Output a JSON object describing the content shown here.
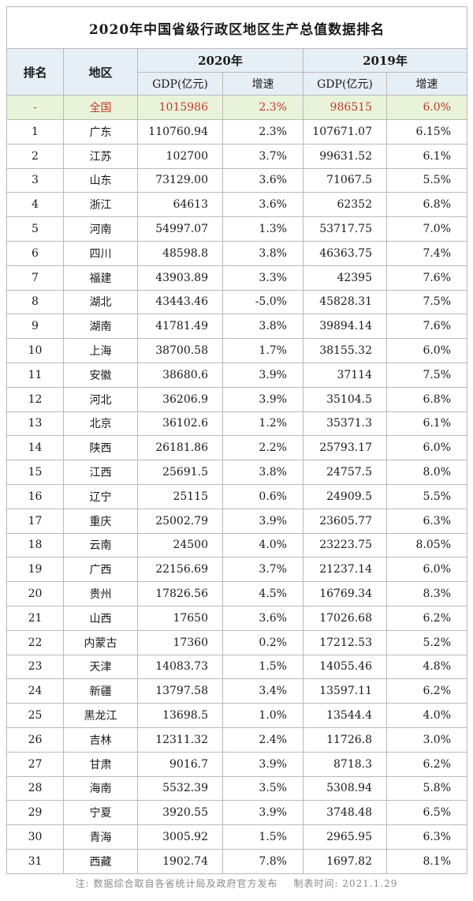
{
  "title": "2020年中国省级行政区地区生产总值数据排名",
  "headers": {
    "rank": "排名",
    "region": "地区",
    "year_2020": "2020年",
    "year_2019": "2019年",
    "gdp": "GDP(亿元)",
    "growth": "增速"
  },
  "national": {
    "rank": "-",
    "region": "全国",
    "gdp_2020": "1015986",
    "growth_2020": "2.3%",
    "gdp_2019": "986515",
    "growth_2019": "6.0%"
  },
  "rows": [
    {
      "rank": "1",
      "region": "广东",
      "gdp_2020": "110760.94",
      "growth_2020": "2.3%",
      "gdp_2019": "107671.07",
      "growth_2019": "6.15%"
    },
    {
      "rank": "2",
      "region": "江苏",
      "gdp_2020": "102700",
      "growth_2020": "3.7%",
      "gdp_2019": "99631.52",
      "growth_2019": "6.1%"
    },
    {
      "rank": "3",
      "region": "山东",
      "gdp_2020": "73129.00",
      "growth_2020": "3.6%",
      "gdp_2019": "71067.5",
      "growth_2019": "5.5%"
    },
    {
      "rank": "4",
      "region": "浙江",
      "gdp_2020": "64613",
      "growth_2020": "3.6%",
      "gdp_2019": "62352",
      "growth_2019": "6.8%"
    },
    {
      "rank": "5",
      "region": "河南",
      "gdp_2020": "54997.07",
      "growth_2020": "1.3%",
      "gdp_2019": "53717.75",
      "growth_2019": "7.0%"
    },
    {
      "rank": "6",
      "region": "四川",
      "gdp_2020": "48598.8",
      "growth_2020": "3.8%",
      "gdp_2019": "46363.75",
      "growth_2019": "7.4%"
    },
    {
      "rank": "7",
      "region": "福建",
      "gdp_2020": "43903.89",
      "growth_2020": "3.3%",
      "gdp_2019": "42395",
      "growth_2019": "7.6%"
    },
    {
      "rank": "8",
      "region": "湖北",
      "gdp_2020": "43443.46",
      "growth_2020": "-5.0%",
      "gdp_2019": "45828.31",
      "growth_2019": "7.5%"
    },
    {
      "rank": "9",
      "region": "湖南",
      "gdp_2020": "41781.49",
      "growth_2020": "3.8%",
      "gdp_2019": "39894.14",
      "growth_2019": "7.6%"
    },
    {
      "rank": "10",
      "region": "上海",
      "gdp_2020": "38700.58",
      "growth_2020": "1.7%",
      "gdp_2019": "38155.32",
      "growth_2019": "6.0%"
    },
    {
      "rank": "11",
      "region": "安徽",
      "gdp_2020": "38680.6",
      "growth_2020": "3.9%",
      "gdp_2019": "37114",
      "growth_2019": "7.5%"
    },
    {
      "rank": "12",
      "region": "河北",
      "gdp_2020": "36206.9",
      "growth_2020": "3.9%",
      "gdp_2019": "35104.5",
      "growth_2019": "6.8%"
    },
    {
      "rank": "13",
      "region": "北京",
      "gdp_2020": "36102.6",
      "growth_2020": "1.2%",
      "gdp_2019": "35371.3",
      "growth_2019": "6.1%"
    },
    {
      "rank": "14",
      "region": "陕西",
      "gdp_2020": "26181.86",
      "growth_2020": "2.2%",
      "gdp_2019": "25793.17",
      "growth_2019": "6.0%"
    },
    {
      "rank": "15",
      "region": "江西",
      "gdp_2020": "25691.5",
      "growth_2020": "3.8%",
      "gdp_2019": "24757.5",
      "growth_2019": "8.0%"
    },
    {
      "rank": "16",
      "region": "辽宁",
      "gdp_2020": "25115",
      "growth_2020": "0.6%",
      "gdp_2019": "24909.5",
      "growth_2019": "5.5%"
    },
    {
      "rank": "17",
      "region": "重庆",
      "gdp_2020": "25002.79",
      "growth_2020": "3.9%",
      "gdp_2019": "23605.77",
      "growth_2019": "6.3%"
    },
    {
      "rank": "18",
      "region": "云南",
      "gdp_2020": "24500",
      "growth_2020": "4.0%",
      "gdp_2019": "23223.75",
      "growth_2019": "8.05%"
    },
    {
      "rank": "19",
      "region": "广西",
      "gdp_2020": "22156.69",
      "growth_2020": "3.7%",
      "gdp_2019": "21237.14",
      "growth_2019": "6.0%"
    },
    {
      "rank": "20",
      "region": "贵州",
      "gdp_2020": "17826.56",
      "growth_2020": "4.5%",
      "gdp_2019": "16769.34",
      "growth_2019": "8.3%"
    },
    {
      "rank": "21",
      "region": "山西",
      "gdp_2020": "17650",
      "growth_2020": "3.6%",
      "gdp_2019": "17026.68",
      "growth_2019": "6.2%"
    },
    {
      "rank": "22",
      "region": "内蒙古",
      "gdp_2020": "17360",
      "growth_2020": "0.2%",
      "gdp_2019": "17212.53",
      "growth_2019": "5.2%"
    },
    {
      "rank": "23",
      "region": "天津",
      "gdp_2020": "14083.73",
      "growth_2020": "1.5%",
      "gdp_2019": "14055.46",
      "growth_2019": "4.8%"
    },
    {
      "rank": "24",
      "region": "新疆",
      "gdp_2020": "13797.58",
      "growth_2020": "3.4%",
      "gdp_2019": "13597.11",
      "growth_2019": "6.2%"
    },
    {
      "rank": "25",
      "region": "黑龙江",
      "gdp_2020": "13698.5",
      "growth_2020": "1.0%",
      "gdp_2019": "13544.4",
      "growth_2019": "4.0%"
    },
    {
      "rank": "26",
      "region": "吉林",
      "gdp_2020": "12311.32",
      "growth_2020": "2.4%",
      "gdp_2019": "11726.8",
      "growth_2019": "3.0%"
    },
    {
      "rank": "27",
      "region": "甘肃",
      "gdp_2020": "9016.7",
      "growth_2020": "3.9%",
      "gdp_2019": "8718.3",
      "growth_2019": "6.2%"
    },
    {
      "rank": "28",
      "region": "海南",
      "gdp_2020": "5532.39",
      "growth_2020": "3.5%",
      "gdp_2019": "5308.94",
      "growth_2019": "5.8%"
    },
    {
      "rank": "29",
      "region": "宁夏",
      "gdp_2020": "3920.55",
      "growth_2020": "3.9%",
      "gdp_2019": "3748.48",
      "growth_2019": "6.5%"
    },
    {
      "rank": "30",
      "region": "青海",
      "gdp_2020": "3005.92",
      "growth_2020": "1.5%",
      "gdp_2019": "2965.95",
      "growth_2019": "6.3%"
    },
    {
      "rank": "31",
      "region": "西藏",
      "gdp_2020": "1902.74",
      "growth_2020": "7.8%",
      "gdp_2019": "1697.82",
      "growth_2019": "8.1%"
    }
  ],
  "footer": {
    "note": "注: 数据综合取自各省统计局及政府官方发布",
    "date": "制表时间: 2021.1.29"
  },
  "colors": {
    "header_bg": "#e6eef6",
    "national_bg": "#e9f3d9",
    "national_text": "#c0392b",
    "border": "#b9b9b9"
  }
}
